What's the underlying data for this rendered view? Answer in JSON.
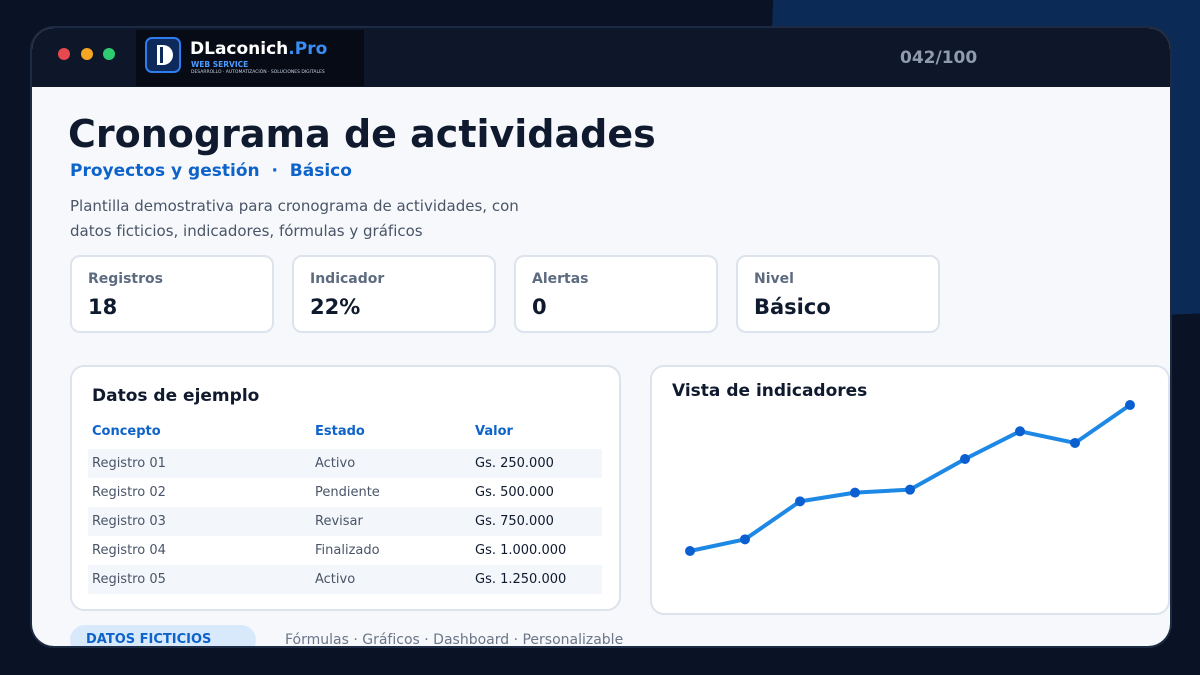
{
  "header": {
    "brand": "DLaconich",
    "brand_suffix": ".Pro",
    "brand_tagline": "WEB SERVICE",
    "brand_services": "DESARROLLO · AUTOMATIZACIÓN · SOLUCIONES DIGITALES",
    "counter": "042/100"
  },
  "title": "Cronograma de actividades",
  "subtitle": [
    "Proyectos y gestión",
    "Básico"
  ],
  "subtitle_separator": "·",
  "description": [
    "Plantilla demostrativa para cronograma de actividades, con",
    "datos ficticios, indicadores, fórmulas y gráficos"
  ],
  "cards": [
    {
      "label": "Registros",
      "value": "18"
    },
    {
      "label": "Indicador",
      "value": "22%"
    },
    {
      "label": "Alertas",
      "value": "0"
    },
    {
      "label": "Nivel",
      "value": "Básico"
    }
  ],
  "table": {
    "title": "Datos de ejemplo",
    "columns": [
      "Concepto",
      "Estado",
      "Valor"
    ],
    "rows": [
      [
        "Registro 01",
        "Activo",
        "Gs. 250.000"
      ],
      [
        "Registro 02",
        "Pendiente",
        "Gs. 500.000"
      ],
      [
        "Registro 03",
        "Revisar",
        "Gs. 750.000"
      ],
      [
        "Registro 04",
        "Finalizado",
        "Gs. 1.000.000"
      ],
      [
        "Registro 05",
        "Activo",
        "Gs. 1.250.000"
      ]
    ]
  },
  "chart_data": {
    "type": "line",
    "title": "Vista de indicadores",
    "values": [
      0,
      8,
      34,
      40,
      42,
      63,
      82,
      74,
      100
    ],
    "color": "#1e88e5",
    "marker_color": "#0b5fd0"
  },
  "footer": {
    "badge": "DATOS FICTICIOS",
    "features": "Fórmulas · Gráficos · Dashboard · Personalizable"
  }
}
